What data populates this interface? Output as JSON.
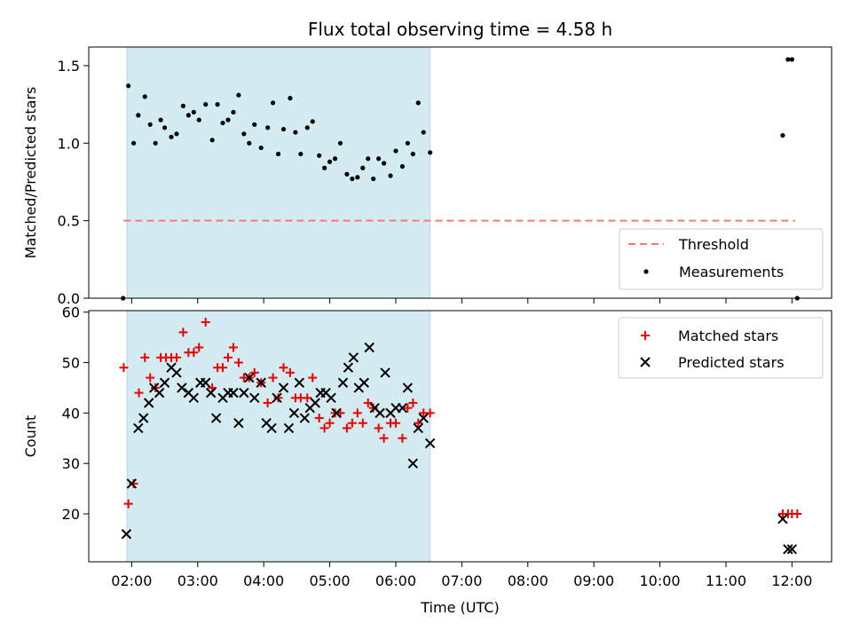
{
  "chart_data": {
    "title": "Flux total observing time = 4.58 h",
    "xlabel": "Time (UTC)",
    "xticks": [
      "02:00",
      "03:00",
      "04:00",
      "05:00",
      "06:00",
      "07:00",
      "08:00",
      "09:00",
      "10:00",
      "11:00",
      "12:00"
    ],
    "xlim_hours": [
      1.35,
      12.6
    ],
    "highlight_span_hours": [
      1.93,
      6.52
    ],
    "colors": {
      "highlight": "#d4ebf1",
      "threshold": "#ff7575",
      "matched": "#ee0000",
      "predicted": "#000000",
      "measurements": "#000000"
    },
    "panels": [
      {
        "type": "scatter",
        "ylabel": "Matched/Predicted stars",
        "ylim": [
          0.0,
          1.62
        ],
        "yticks": [
          "0.0",
          "0.5",
          "1.0",
          "1.5"
        ],
        "yticks_values": [
          0.0,
          0.5,
          1.0,
          1.5
        ],
        "threshold": {
          "name": "Threshold",
          "y": 0.5,
          "x_range": [
            1.88,
            12.05
          ]
        },
        "legend_position": "lower-right",
        "series": [
          {
            "name": "Measurements",
            "marker": "dot",
            "x": [
              1.87,
              1.95,
              2.03,
              2.1,
              2.2,
              2.28,
              2.36,
              2.44,
              2.5,
              2.6,
              2.68,
              2.78,
              2.86,
              2.94,
              3.02,
              3.12,
              3.22,
              3.3,
              3.38,
              3.46,
              3.54,
              3.62,
              3.7,
              3.78,
              3.86,
              3.96,
              4.06,
              4.14,
              4.22,
              4.3,
              4.4,
              4.48,
              4.56,
              4.66,
              4.74,
              4.84,
              4.92,
              5.0,
              5.08,
              5.16,
              5.26,
              5.34,
              5.42,
              5.5,
              5.58,
              5.66,
              5.74,
              5.82,
              5.92,
              6.0,
              6.1,
              6.18,
              6.26,
              6.34,
              6.42,
              6.52,
              11.86,
              11.94,
              12.0,
              12.08
            ],
            "y": [
              0.0,
              1.37,
              1.0,
              1.18,
              1.3,
              1.12,
              1.0,
              1.15,
              1.1,
              1.04,
              1.06,
              1.24,
              1.18,
              1.2,
              1.15,
              1.25,
              1.02,
              1.25,
              1.13,
              1.15,
              1.2,
              1.31,
              1.06,
              1.0,
              1.12,
              0.97,
              1.1,
              1.26,
              0.93,
              1.09,
              1.29,
              1.07,
              0.93,
              1.1,
              1.14,
              0.92,
              0.84,
              0.88,
              0.9,
              1.0,
              0.8,
              0.77,
              0.78,
              0.84,
              0.9,
              0.77,
              0.9,
              0.87,
              0.79,
              0.95,
              0.85,
              1.0,
              0.93,
              1.26,
              1.07,
              0.94,
              1.05,
              1.54,
              1.54,
              0.0
            ]
          }
        ]
      },
      {
        "type": "scatter",
        "ylabel": "Count",
        "ylim": [
          10.5,
          60.3
        ],
        "yticks": [
          "20",
          "30",
          "40",
          "50",
          "60"
        ],
        "yticks_values": [
          20,
          30,
          40,
          50,
          60
        ],
        "legend_position": "upper-right",
        "series": [
          {
            "name": "Matched stars",
            "marker": "plus",
            "x": [
              1.88,
              1.95,
              2.03,
              2.11,
              2.2,
              2.28,
              2.36,
              2.44,
              2.52,
              2.6,
              2.68,
              2.78,
              2.86,
              2.94,
              3.02,
              3.12,
              3.22,
              3.3,
              3.38,
              3.46,
              3.54,
              3.62,
              3.7,
              3.78,
              3.86,
              3.96,
              4.06,
              4.14,
              4.22,
              4.3,
              4.4,
              4.48,
              4.56,
              4.66,
              4.74,
              4.84,
              4.92,
              5.0,
              5.08,
              5.16,
              5.26,
              5.34,
              5.42,
              5.5,
              5.58,
              5.66,
              5.74,
              5.82,
              5.92,
              6.0,
              6.1,
              6.18,
              6.26,
              6.34,
              6.42,
              6.52,
              11.86,
              11.94,
              12.0,
              12.08
            ],
            "y": [
              49,
              22,
              26,
              44,
              51,
              47,
              45,
              51,
              51,
              51,
              51,
              56,
              52,
              52,
              53,
              58,
              45,
              49,
              49,
              51,
              53,
              50,
              47,
              47,
              48,
              46,
              42,
              47,
              43,
              49,
              48,
              43,
              43,
              43,
              47,
              39,
              37,
              38,
              40,
              40,
              37,
              38,
              40,
              38,
              42,
              41,
              37,
              35,
              38,
              38,
              35,
              41,
              42,
              38,
              40,
              40,
              20,
              20,
              20,
              20
            ]
          },
          {
            "name": "Predicted stars",
            "marker": "x",
            "x": [
              1.92,
              2.0,
              2.1,
              2.18,
              2.26,
              2.34,
              2.42,
              2.5,
              2.6,
              2.68,
              2.76,
              2.86,
              2.94,
              3.04,
              3.12,
              3.2,
              3.28,
              3.38,
              3.46,
              3.54,
              3.62,
              3.7,
              3.78,
              3.86,
              3.96,
              4.04,
              4.12,
              4.2,
              4.3,
              4.38,
              4.46,
              4.54,
              4.62,
              4.7,
              4.78,
              4.86,
              4.94,
              5.02,
              5.1,
              5.2,
              5.28,
              5.36,
              5.44,
              5.52,
              5.6,
              5.68,
              5.76,
              5.84,
              5.92,
              6.0,
              6.1,
              6.18,
              6.26,
              6.34,
              6.42,
              6.52,
              11.86,
              11.94,
              12.0
            ],
            "y": [
              16,
              26,
              37,
              39,
              42,
              45,
              44,
              46,
              49,
              48,
              45,
              44,
              43,
              46,
              46,
              44,
              39,
              43,
              44,
              44,
              38,
              44,
              47,
              43,
              46,
              38,
              37,
              43,
              45,
              37,
              40,
              46,
              39,
              41,
              42,
              44,
              44,
              43,
              40,
              46,
              49,
              51,
              45,
              46,
              53,
              41,
              40,
              48,
              40,
              41,
              41,
              45,
              30,
              37,
              39,
              34,
              19,
              13,
              13
            ]
          }
        ]
      }
    ]
  }
}
